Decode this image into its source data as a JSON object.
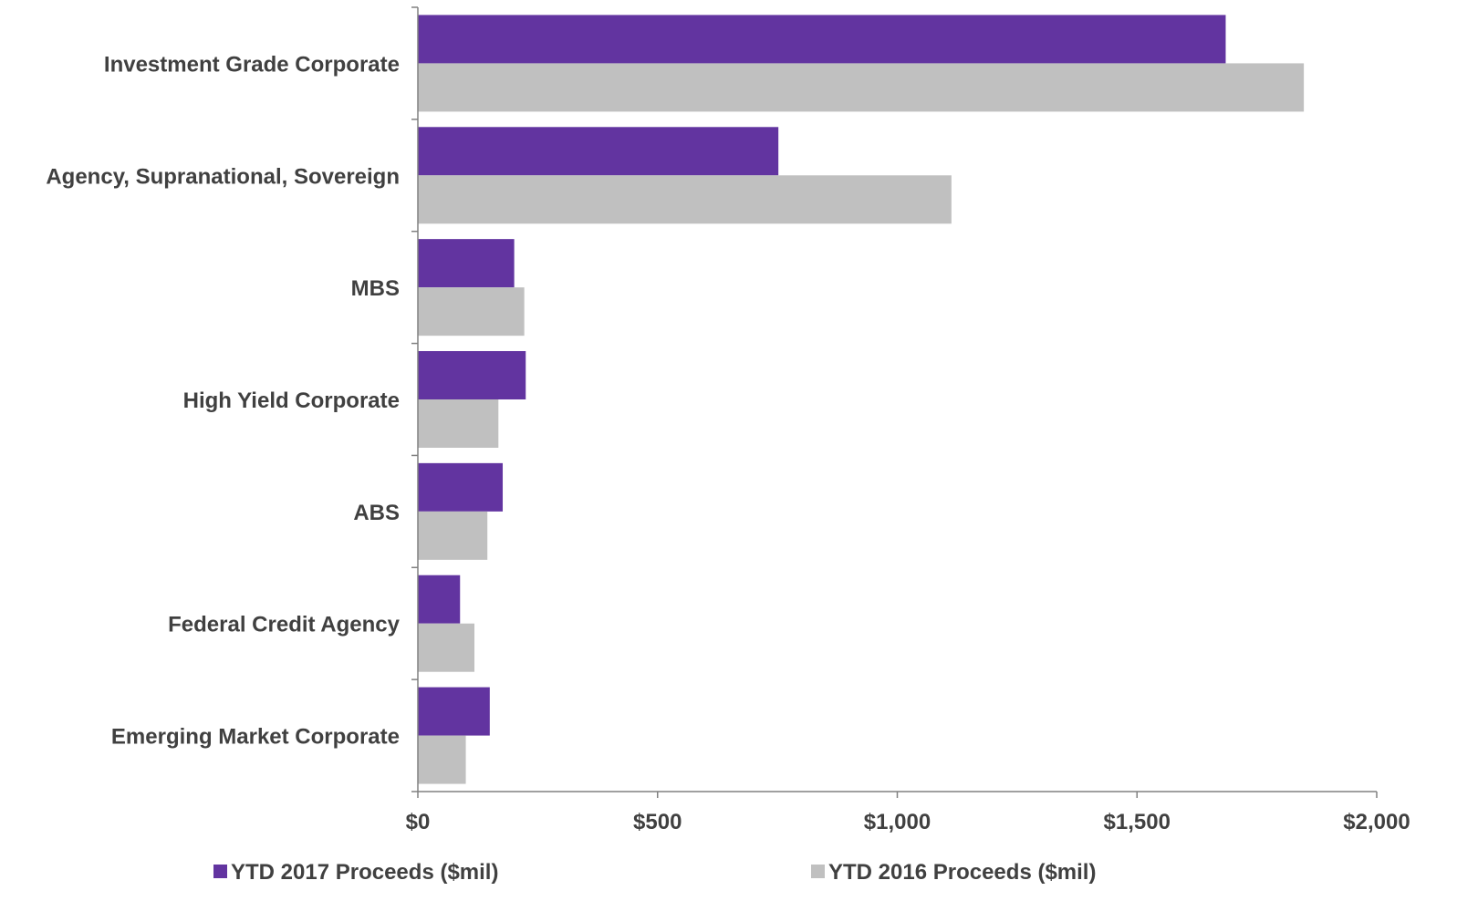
{
  "colors": {
    "series_2017": "#6234a0",
    "series_2016": "#c0c0c0",
    "text": "#404040",
    "axis": "#808080"
  },
  "chart_data": {
    "type": "bar",
    "orientation": "horizontal",
    "categories": [
      "Investment Grade Corporate",
      "Agency, Supranational, Sovereign",
      "MBS",
      "High Yield Corporate",
      "ABS",
      "Federal Credit Agency",
      "Emerging Market Corporate"
    ],
    "series": [
      {
        "name": "YTD 2017 Proceeds ($mil)",
        "color": "#6234a0",
        "values": [
          1685,
          752,
          201,
          225,
          177,
          88,
          150
        ]
      },
      {
        "name": "YTD 2016 Proceeds ($mil)",
        "color": "#c0c0c0",
        "values": [
          1848,
          1113,
          222,
          168,
          145,
          118,
          100
        ]
      }
    ],
    "xlim": [
      0,
      2000
    ],
    "x_ticks": [
      0,
      500,
      1000,
      1500,
      2000
    ],
    "x_tick_labels": [
      "$0",
      "$500",
      "$1,000",
      "$1,500",
      "$2,000"
    ],
    "grid": false,
    "legend_position": "bottom",
    "title": "",
    "xlabel": "",
    "ylabel": ""
  }
}
